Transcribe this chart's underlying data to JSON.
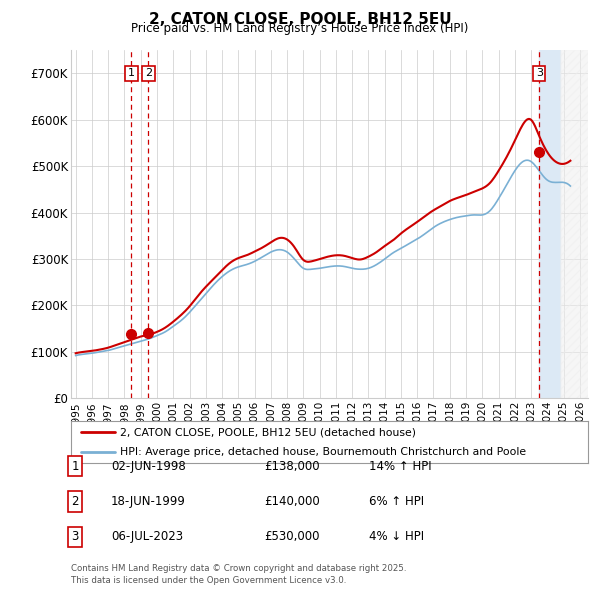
{
  "title": "2, CATON CLOSE, POOLE, BH12 5EU",
  "subtitle": "Price paid vs. HM Land Registry’s House Price Index (HPI)",
  "ylim": [
    0,
    750000
  ],
  "xlim_start": 1994.7,
  "xlim_end": 2026.5,
  "yticks": [
    0,
    100000,
    200000,
    300000,
    400000,
    500000,
    600000,
    700000
  ],
  "ytick_labels": [
    "£0",
    "£100K",
    "£200K",
    "£300K",
    "£400K",
    "£500K",
    "£600K",
    "£700K"
  ],
  "xticks": [
    1995,
    1996,
    1997,
    1998,
    1999,
    2000,
    2001,
    2002,
    2003,
    2004,
    2005,
    2006,
    2007,
    2008,
    2009,
    2010,
    2011,
    2012,
    2013,
    2014,
    2015,
    2016,
    2017,
    2018,
    2019,
    2020,
    2021,
    2022,
    2023,
    2024,
    2025,
    2026
  ],
  "sale_dates": [
    1998.42,
    1999.46,
    2023.5
  ],
  "sale_prices": [
    138000,
    140000,
    530000
  ],
  "sale_labels": [
    "1",
    "2",
    "3"
  ],
  "line_color_property": "#cc0000",
  "line_color_hpi": "#7ab0d4",
  "shade_color_sale": "#dce9f5",
  "shade_color_future": "#e8e8e8",
  "hatch_future": "////",
  "legend_property": "2, CATON CLOSE, POOLE, BH12 5EU (detached house)",
  "legend_hpi": "HPI: Average price, detached house, Bournemouth Christchurch and Poole",
  "table_rows": [
    {
      "num": "1",
      "date": "02-JUN-1998",
      "price": "£138,000",
      "change": "14% ↑ HPI"
    },
    {
      "num": "2",
      "date": "18-JUN-1999",
      "price": "£140,000",
      "change": "6% ↑ HPI"
    },
    {
      "num": "3",
      "date": "06-JUL-2023",
      "price": "£530,000",
      "change": "4% ↓ HPI"
    }
  ],
  "footer": "Contains HM Land Registry data © Crown copyright and database right 2025.\nThis data is licensed under the Open Government Licence v3.0.",
  "bg_color": "#ffffff",
  "grid_color": "#cccccc",
  "vline_color": "#cc0000"
}
